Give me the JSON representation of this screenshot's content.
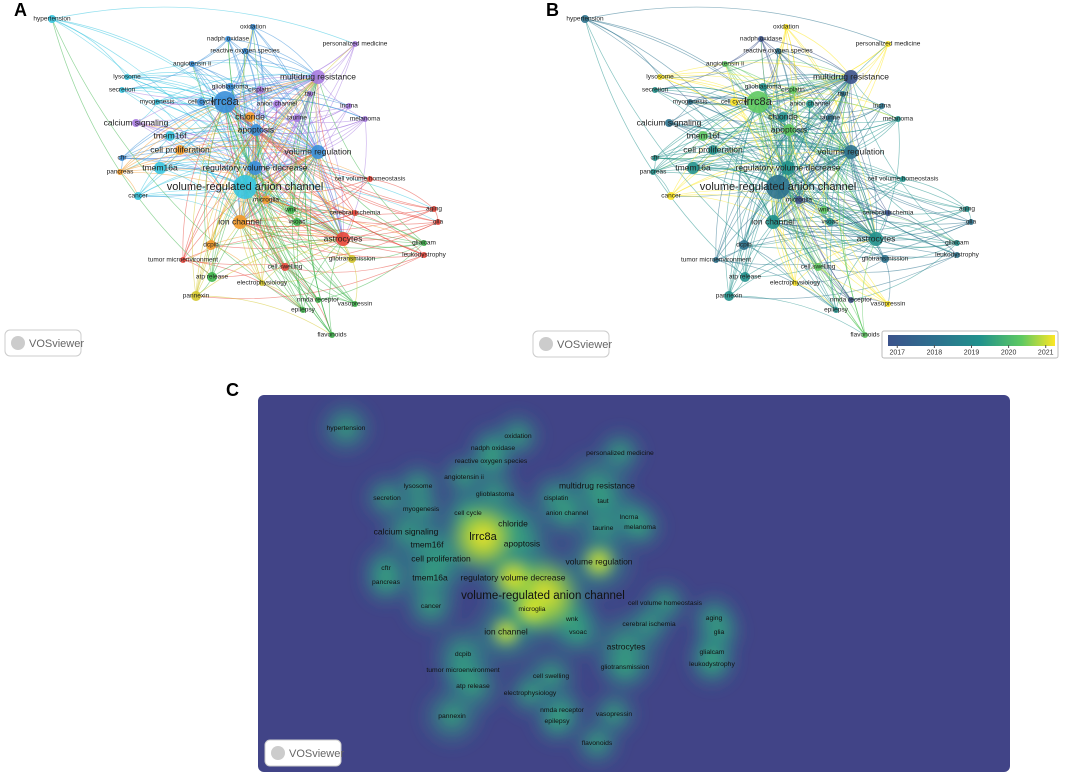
{
  "panels": [
    {
      "label": "A",
      "logo": "VOSviewer"
    },
    {
      "label": "B",
      "logo": "VOSviewer",
      "colorbar": {
        "range": [
          2016.75,
          2021.25
        ],
        "ticks": [
          2017,
          2018,
          2019,
          2020,
          2021
        ]
      }
    },
    {
      "label": "C",
      "logo": "VOSviewer"
    }
  ],
  "keywords": [
    "hypertension",
    "oxidation",
    "nadph oxidase",
    "personalized medicine",
    "reactive oxygen species",
    "angiotensin ii",
    "multidrug resistance",
    "lysosome",
    "glioblastoma",
    "secretion",
    "cisplatin",
    "taut",
    "cell cycle",
    "myogenesis",
    "anion channel",
    "lncrna",
    "lrrc8a",
    "chloride",
    "taurine",
    "melanoma",
    "calcium signaling",
    "tmem16f",
    "apoptosis",
    "cell proliferation",
    "volume regulation",
    "cftr",
    "tmem16a",
    "regulatory volume decrease",
    "pancreas",
    "volume-regulated anion channel",
    "cell volume homeostasis",
    "cancer",
    "microglia",
    "aging",
    "wnk",
    "cerebral ischemia",
    "glia",
    "vsoac",
    "ion channel",
    "astrocytes",
    "dcpib",
    "glialcam",
    "leukodystrophy",
    "tumor microenvironment",
    "gliotransmission",
    "cell swelling",
    "atp release",
    "electrophysiology",
    "nmda receptor",
    "pannexin",
    "epilepsy",
    "vasopressin",
    "flavonoids"
  ]
}
